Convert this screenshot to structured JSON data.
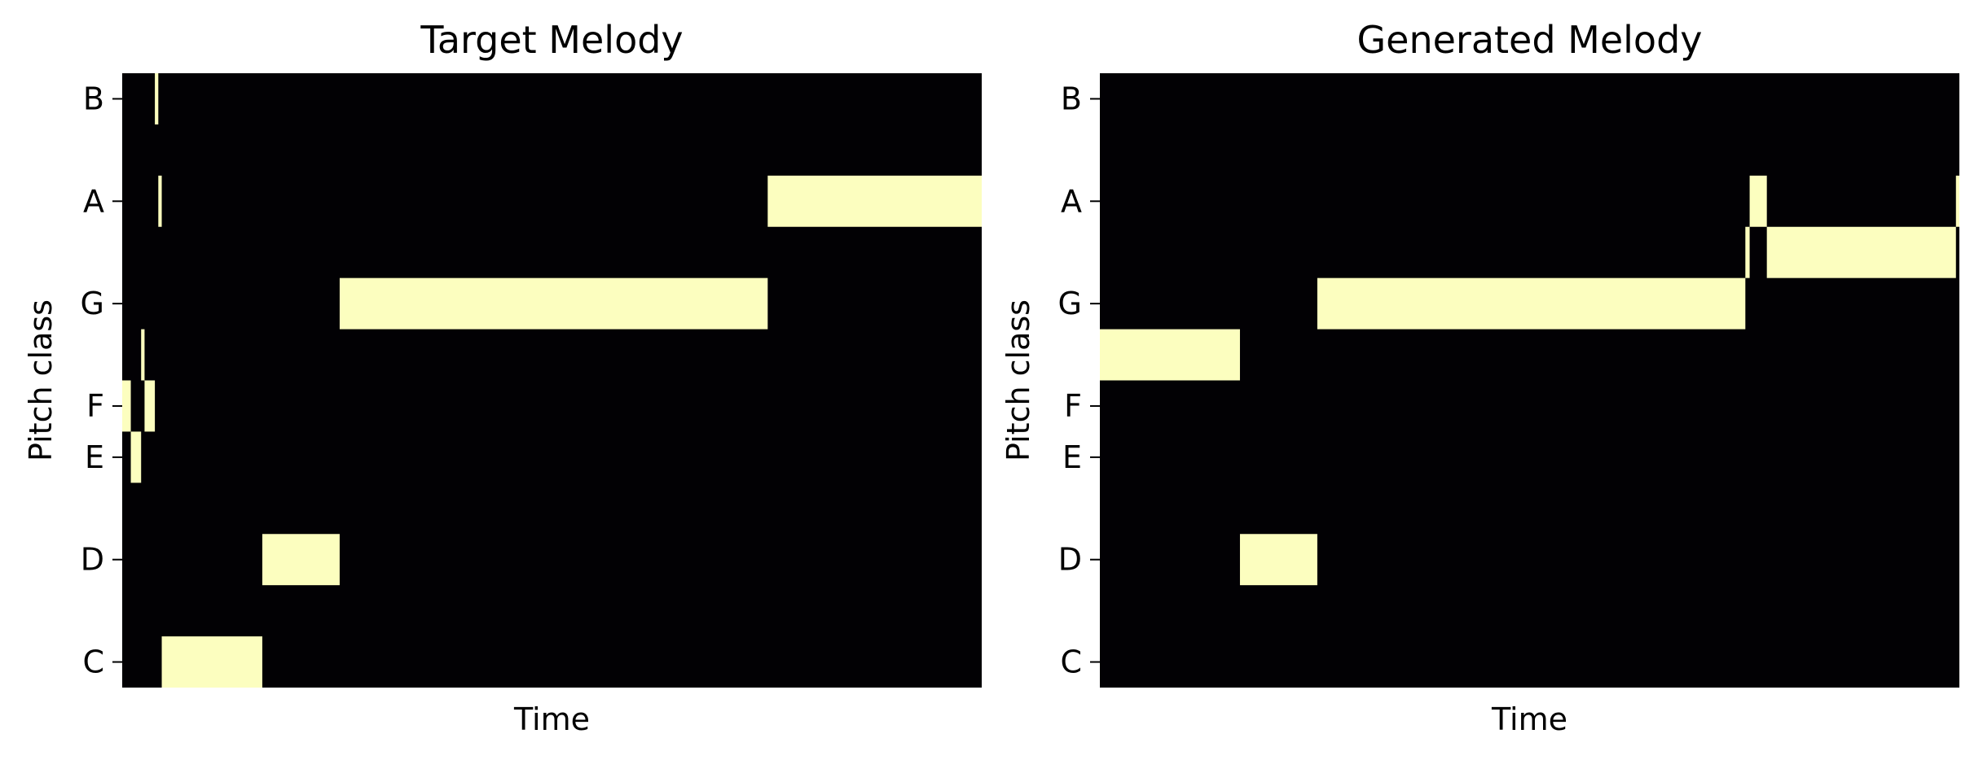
{
  "chart_data": [
    {
      "type": "heatmap",
      "title": "Target Melody",
      "xlabel": "Time",
      "ylabel": "Pitch class",
      "pitch_classes": [
        "C",
        "C#",
        "D",
        "D#",
        "E",
        "F",
        "F#",
        "G",
        "G#",
        "A",
        "A#",
        "B"
      ],
      "yticks": [
        "C",
        "D",
        "E",
        "F",
        "G",
        "A",
        "B"
      ],
      "xlim": [
        0,
        100
      ],
      "colormap": {
        "off": "#020104",
        "on": "#fcfebf"
      },
      "notes": [
        {
          "pitch": "F",
          "start": 0.0,
          "end": 1.0
        },
        {
          "pitch": "E",
          "start": 1.0,
          "end": 2.2
        },
        {
          "pitch": "F#",
          "start": 2.2,
          "end": 2.6
        },
        {
          "pitch": "F",
          "start": 2.6,
          "end": 3.8
        },
        {
          "pitch": "B",
          "start": 3.8,
          "end": 4.2
        },
        {
          "pitch": "A",
          "start": 4.2,
          "end": 4.6
        },
        {
          "pitch": "C",
          "start": 4.6,
          "end": 16.3
        },
        {
          "pitch": "D",
          "start": 16.3,
          "end": 25.3
        },
        {
          "pitch": "G",
          "start": 25.3,
          "end": 75.1
        },
        {
          "pitch": "A",
          "start": 75.1,
          "end": 100.0
        }
      ]
    },
    {
      "type": "heatmap",
      "title": "Generated Melody",
      "xlabel": "Time",
      "ylabel": "Pitch class",
      "pitch_classes": [
        "C",
        "C#",
        "D",
        "D#",
        "E",
        "F",
        "F#",
        "G",
        "G#",
        "A",
        "A#",
        "B"
      ],
      "yticks": [
        "C",
        "D",
        "E",
        "F",
        "G",
        "A",
        "B"
      ],
      "xlim": [
        0,
        100
      ],
      "colormap": {
        "off": "#020104",
        "on": "#fcfebf"
      },
      "notes": [
        {
          "pitch": "F#",
          "start": 0.0,
          "end": 16.3
        },
        {
          "pitch": "D",
          "start": 16.3,
          "end": 25.3
        },
        {
          "pitch": "G",
          "start": 25.3,
          "end": 75.1
        },
        {
          "pitch": "G#",
          "start": 75.1,
          "end": 75.6
        },
        {
          "pitch": "A",
          "start": 75.6,
          "end": 77.6
        },
        {
          "pitch": "G#",
          "start": 77.6,
          "end": 99.6
        },
        {
          "pitch": "A",
          "start": 99.6,
          "end": 100.0
        }
      ]
    }
  ]
}
